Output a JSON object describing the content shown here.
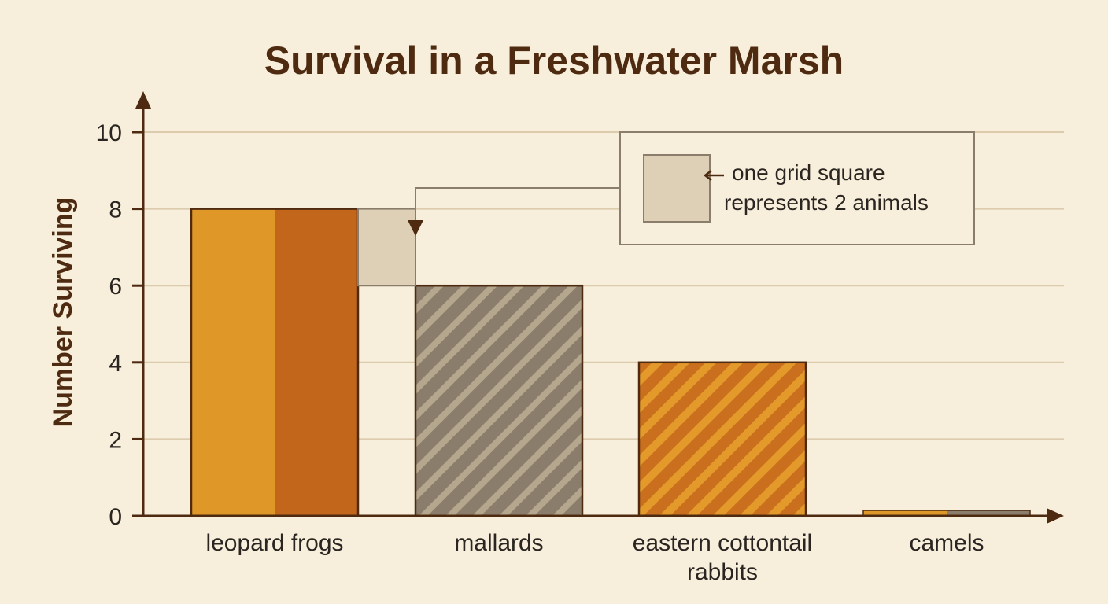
{
  "chart_data": {
    "type": "bar",
    "title": "Survival in a Freshwater Marsh",
    "ylabel": "Number Surviving",
    "xlabel": "",
    "ylim": [
      0,
      10
    ],
    "yticks": [
      "0",
      "2",
      "4",
      "6",
      "8",
      "10"
    ],
    "grid": true,
    "categories": [
      [
        "leopard frogs"
      ],
      [
        "mallards"
      ],
      [
        "eastern cottontail",
        "rabbits"
      ],
      [
        "camels"
      ]
    ],
    "values": [
      8,
      6,
      4,
      0
    ],
    "key": {
      "placement": "top-right",
      "lines": [
        "one grid square",
        "represents 2 animals"
      ],
      "square_value": 2
    },
    "colors": {
      "background": "#f7efdc",
      "gold": "#df9727",
      "rust": "#c1661b",
      "taupe": "#8a7d6b",
      "taupe_stripe": "#b5a78e",
      "key_square": "#ddd0b6",
      "axis": "#4e2a10",
      "grid": "#dccbad",
      "bar_outline": "#4e2a10"
    }
  }
}
